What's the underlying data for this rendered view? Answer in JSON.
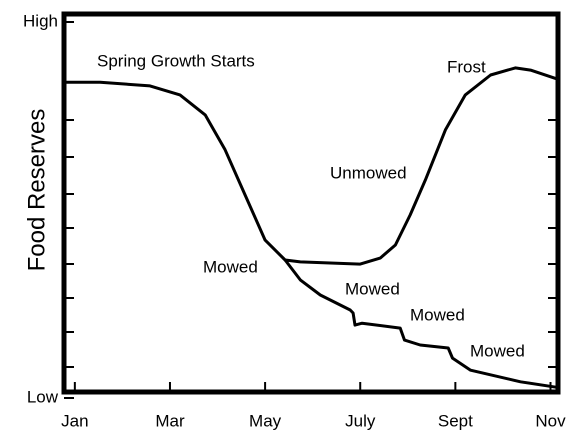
{
  "chart_data": {
    "type": "line",
    "ylabel": "Food Reserves",
    "xlim": [
      0.73,
      11.2
    ],
    "xticks": [
      {
        "value": 1,
        "label": "Jan"
      },
      {
        "value": 3,
        "label": "Mar"
      },
      {
        "value": 5,
        "label": "May"
      },
      {
        "value": 7,
        "label": "July"
      },
      {
        "value": 9,
        "label": "Sept"
      },
      {
        "value": 11,
        "label": "Nov"
      }
    ],
    "ylim": [
      0,
      100
    ],
    "yticks": [
      {
        "value": 100,
        "label": "High"
      },
      {
        "value": 0,
        "label": "Low"
      }
    ],
    "series": [
      {
        "name": "Unmowed",
        "color": "#000000",
        "x": [
          0.73,
          1.53,
          2.58,
          3.21,
          3.74,
          4.16,
          4.58,
          5.0,
          5.42,
          5.74,
          7.0,
          7.42,
          7.74,
          8.05,
          8.37,
          8.79,
          9.21,
          9.74,
          10.26,
          10.58,
          11.2
        ],
        "values": [
          84.0,
          84.0,
          83.0,
          80.6,
          75.3,
          66.0,
          54.0,
          42.0,
          36.7,
          36.2,
          35.6,
          37.2,
          40.7,
          48.7,
          58.0,
          71.3,
          80.6,
          85.9,
          87.8,
          87.2,
          84.6
        ]
      },
      {
        "name": "Mowed",
        "color": "#000000",
        "x": [
          5.42,
          5.74,
          6.16,
          6.79,
          6.85,
          6.89,
          7.04,
          7.84,
          7.93,
          8.26,
          8.85,
          8.94,
          9.32,
          10.37,
          11.2
        ],
        "values": [
          36.7,
          31.4,
          27.4,
          23.4,
          22.6,
          19.4,
          19.9,
          18.6,
          15.4,
          14.1,
          13.3,
          10.6,
          7.4,
          4.3,
          2.7
        ]
      }
    ],
    "annotations": [
      "Spring Growth Starts",
      "Frost",
      "Mowed",
      "Mowed",
      "Mowed"
    ]
  }
}
